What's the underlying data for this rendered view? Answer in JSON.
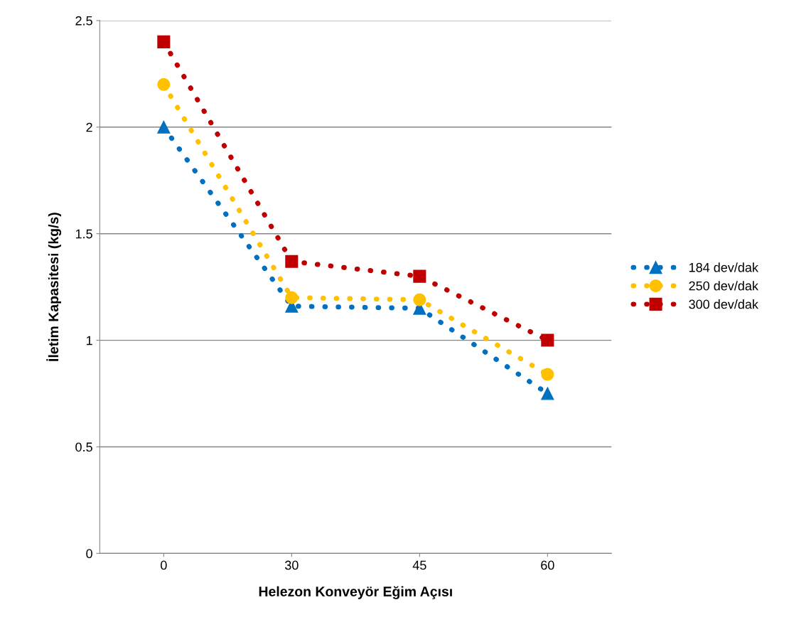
{
  "chart_data": {
    "type": "line",
    "xlabel": "Helezon Konveyör Eğim Açısı",
    "ylabel": "İletim Kapasitesi (kg/s)",
    "categories": [
      "0",
      "30",
      "45",
      "60"
    ],
    "series": [
      {
        "name": "184 dev/dak",
        "color": "#0070c0",
        "marker": "triangle",
        "values": [
          2.0,
          1.16,
          1.15,
          0.75
        ]
      },
      {
        "name": "250 dev/dak",
        "color": "#ffc000",
        "marker": "circle",
        "values": [
          2.2,
          1.2,
          1.19,
          0.84
        ]
      },
      {
        "name": "300 dev/dak",
        "color": "#c00000",
        "marker": "square",
        "values": [
          2.4,
          1.37,
          1.3,
          1.0
        ]
      }
    ],
    "ylim": [
      0,
      2.5
    ],
    "yticks": [
      0,
      0.5,
      1,
      1.5,
      2,
      2.5
    ],
    "grid": "y",
    "legend": "right",
    "line_style": "dotted"
  }
}
